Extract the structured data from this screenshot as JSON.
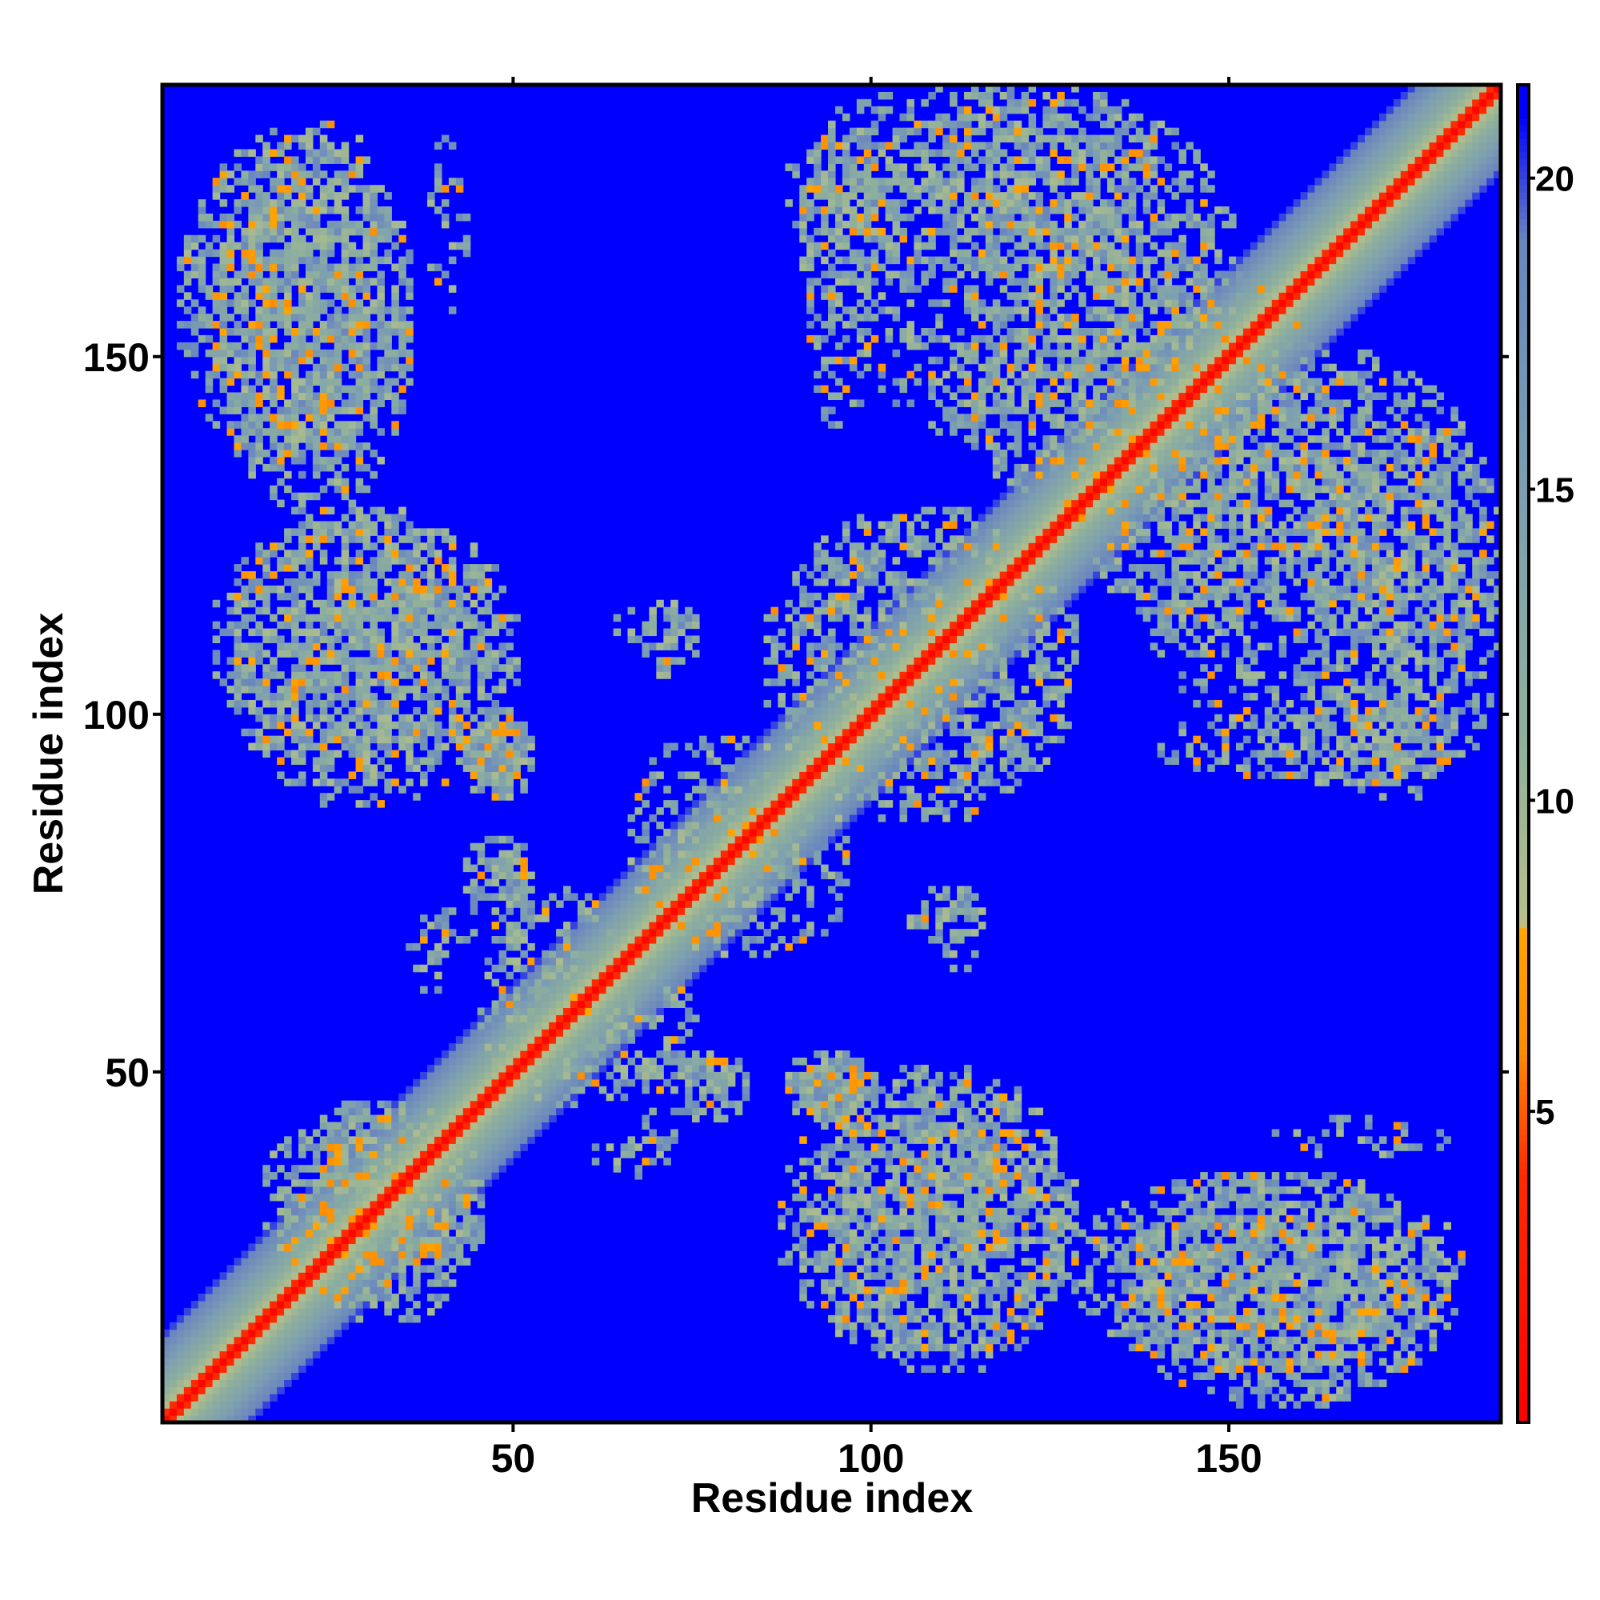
{
  "chart_data": {
    "type": "heatmap",
    "title": "",
    "xlabel": "Residue index",
    "ylabel": "Residue index",
    "xlim": [
      1,
      187
    ],
    "ylim": [
      1,
      187
    ],
    "xticks": [
      50,
      100,
      150
    ],
    "yticks": [
      50,
      100,
      150
    ],
    "colorbar": {
      "ticks": [
        5,
        10,
        15,
        20
      ],
      "range": [
        0,
        21.5
      ],
      "palette": [
        {
          "value": 0,
          "color": "#ff0000"
        },
        {
          "value": 4,
          "color": "#ff2a00"
        },
        {
          "value": 6,
          "color": "#ff8c00"
        },
        {
          "value": 8,
          "color": "#ffa500"
        },
        {
          "value": 8.01,
          "color": "#b9c08a"
        },
        {
          "value": 11,
          "color": "#8fb09c"
        },
        {
          "value": 15,
          "color": "#7d9fb0"
        },
        {
          "value": 19,
          "color": "#6a86be"
        },
        {
          "value": 21,
          "color": "#0000ff"
        }
      ]
    },
    "background_color": "#0000ff",
    "matrix_size": 187,
    "diagonal_band": {
      "contact_halfwidth": 1.8,
      "fade_halfwidth": 12
    },
    "contact_regions": [
      {
        "x": [
          3,
          35
        ],
        "y": [
          135,
          180
        ],
        "density": 0.62
      },
      {
        "x": [
          8,
          50
        ],
        "y": [
          92,
          127
        ],
        "density": 0.5
      },
      {
        "x": [
          42,
          52
        ],
        "y": [
          88,
          100
        ],
        "density": 0.8
      },
      {
        "x": [
          43,
          52
        ],
        "y": [
          72,
          82
        ],
        "density": 0.6
      },
      {
        "x": [
          35,
          47
        ],
        "y": [
          65,
          72
        ],
        "density": 0.3
      },
      {
        "x": [
          15,
          45
        ],
        "y": [
          18,
          45
        ],
        "density": 0.55
      },
      {
        "x": [
          45,
          75
        ],
        "y": [
          45,
          65
        ],
        "density": 0.35
      },
      {
        "x": [
          62,
          82
        ],
        "y": [
          47,
          52
        ],
        "density": 0.45
      },
      {
        "x": [
          88,
          100
        ],
        "y": [
          47,
          52
        ],
        "density": 0.55
      },
      {
        "x": [
          87,
          128
        ],
        "y": [
          10,
          48
        ],
        "density": 0.5
      },
      {
        "x": [
          128,
          182
        ],
        "y": [
          8,
          35
        ],
        "density": 0.5
      },
      {
        "x": [
          155,
          180
        ],
        "y": [
          38,
          42
        ],
        "density": 0.25
      },
      {
        "x": [
          86,
          128
        ],
        "y": [
          85,
          128
        ],
        "density": 0.35
      },
      {
        "x": [
          64,
          75
        ],
        "y": [
          109,
          115
        ],
        "density": 0.25
      },
      {
        "x": [
          66,
          90
        ],
        "y": [
          68,
          97
        ],
        "density": 0.3
      },
      {
        "x": [
          105,
          115
        ],
        "y": [
          68,
          75
        ],
        "density": 0.35
      },
      {
        "x": [
          88,
          140
        ],
        "y": [
          160,
          187
        ],
        "density": 0.45
      },
      {
        "x": [
          110,
          160
        ],
        "y": [
          128,
          165
        ],
        "density": 0.35
      },
      {
        "x": [
          136,
          187
        ],
        "y": [
          96,
          150
        ],
        "density": 0.45
      },
      {
        "x": [
          145,
          185
        ],
        "y": [
          90,
          100
        ],
        "density": 0.2
      },
      {
        "x": [
          90,
          100
        ],
        "y": [
          140,
          181
        ],
        "density": 0.25
      },
      {
        "x": [
          40,
          43
        ],
        "y": [
          162,
          175
        ],
        "density": 0.3
      },
      {
        "x": [
          58,
          70
        ],
        "y": [
          36,
          39
        ],
        "density": 0.2
      }
    ]
  }
}
